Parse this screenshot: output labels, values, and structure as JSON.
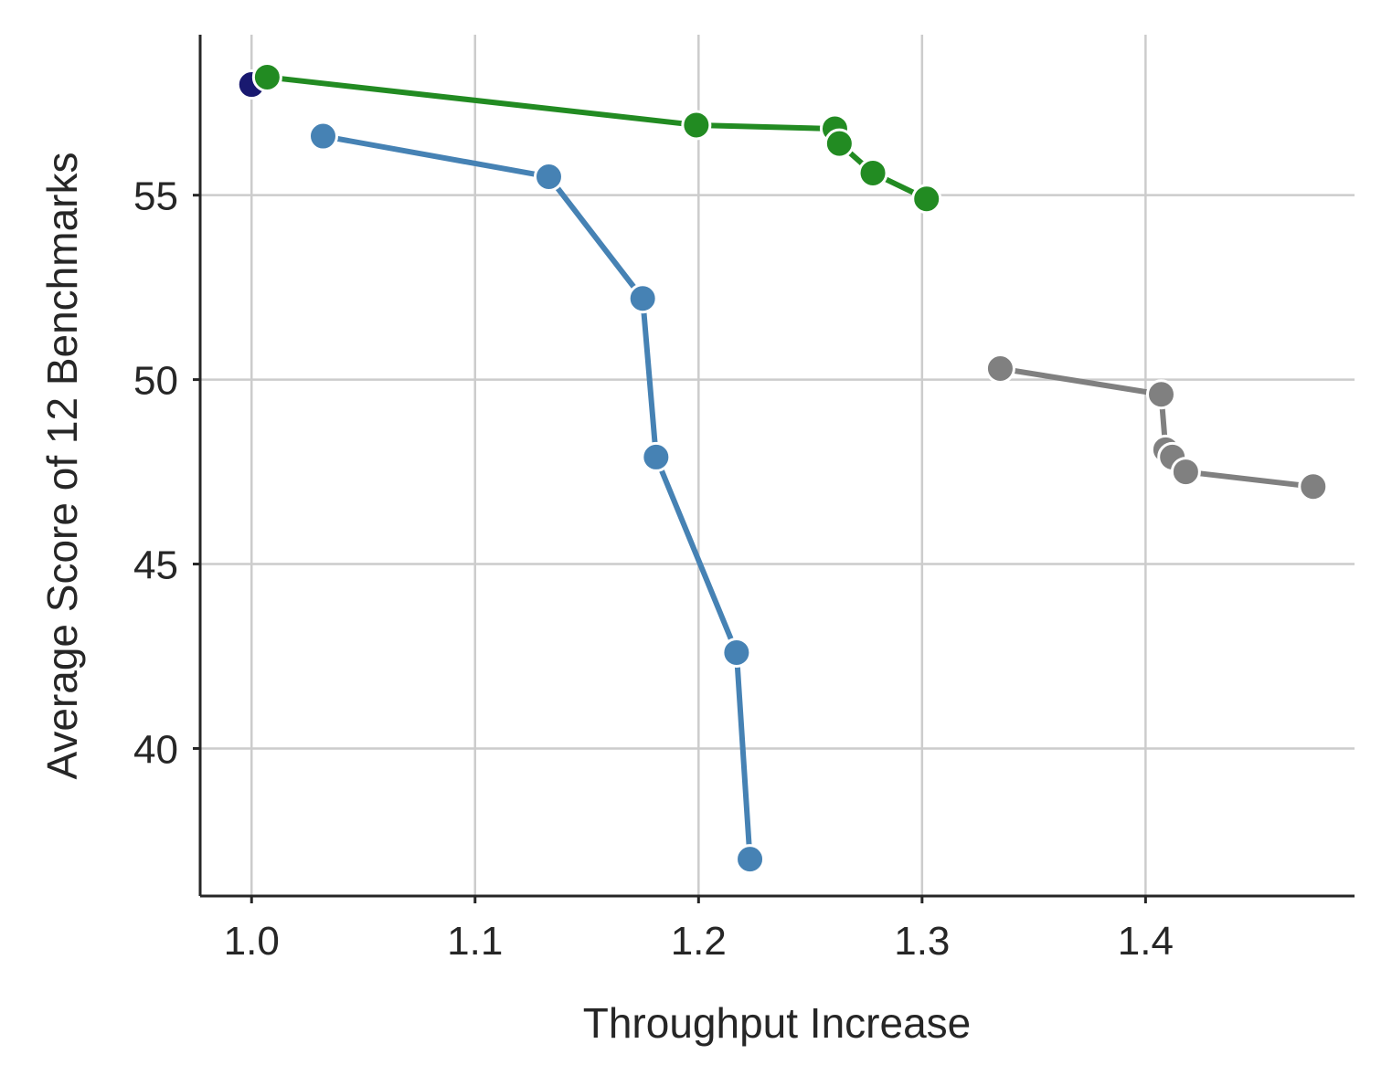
{
  "chart_data": {
    "type": "line",
    "title": "",
    "xlabel": "Throughput Increase",
    "ylabel": "Average Score of 12 Benchmarks",
    "xlim": [
      0.977,
      1.4935
    ],
    "ylim": [
      36.0,
      59.35
    ],
    "xticks": [
      1.0,
      1.1,
      1.2,
      1.3,
      1.4
    ],
    "xtick_labels": [
      "1.0",
      "1.1",
      "1.2",
      "1.3",
      "1.4"
    ],
    "yticks": [
      40,
      45,
      50,
      55
    ],
    "ytick_labels": [
      "40",
      "45",
      "50",
      "55"
    ],
    "grid": true,
    "legend": "none",
    "series": [
      {
        "color": "#191970",
        "x": [
          1.0
        ],
        "y": [
          58.0
        ]
      },
      {
        "color": "#228b22",
        "x": [
          1.007,
          1.199,
          1.261,
          1.263,
          1.278,
          1.302
        ],
        "y": [
          58.2,
          56.9,
          56.8,
          56.4,
          55.6,
          54.9
        ]
      },
      {
        "color": "#4682b4",
        "x": [
          1.032,
          1.133,
          1.175,
          1.181,
          1.217,
          1.223
        ],
        "y": [
          56.6,
          55.5,
          52.2,
          47.9,
          42.6,
          37.0
        ]
      },
      {
        "color": "#808080",
        "x": [
          1.335,
          1.407,
          1.409,
          1.412,
          1.418,
          1.475
        ],
        "y": [
          50.3,
          49.6,
          48.1,
          47.9,
          47.5,
          47.1
        ]
      }
    ]
  }
}
